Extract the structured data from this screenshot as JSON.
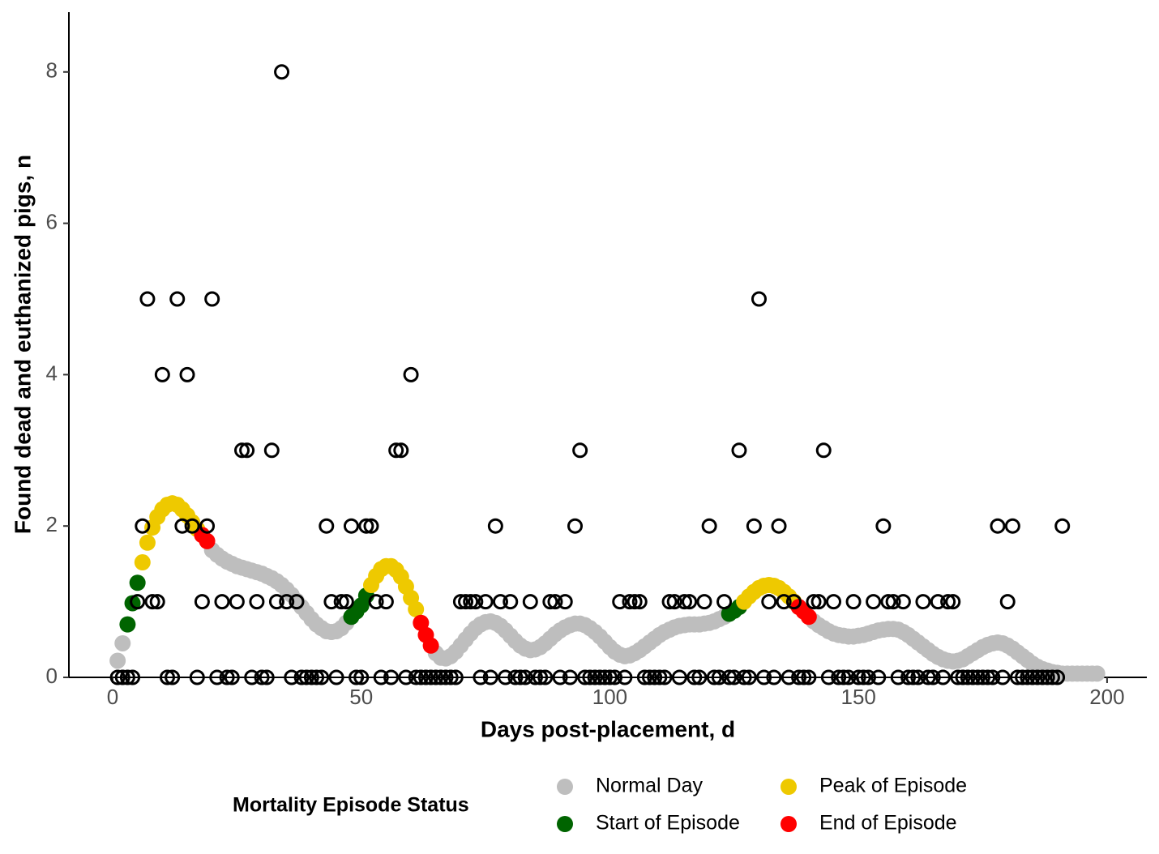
{
  "chart_data": {
    "type": "scatter",
    "x_label": "Days post-placement, d",
    "y_label": "Found dead and euthanized pigs, n",
    "legend_title": "Mortality Episode Status",
    "xlim": [
      -8.8,
      208
    ],
    "ylim": [
      0,
      8.79
    ],
    "xticks": [
      0,
      50,
      100,
      150,
      200
    ],
    "yticks": [
      0,
      2,
      4,
      6,
      8
    ],
    "grid": false,
    "legend_position": "bottom",
    "points": {
      "color": "#000000",
      "x": [
        1,
        2,
        3,
        4,
        5,
        6,
        7,
        8,
        9,
        10,
        11,
        12,
        13,
        14,
        15,
        16,
        17,
        18,
        19,
        20,
        21,
        22,
        23,
        24,
        25,
        26,
        27,
        28,
        29,
        30,
        31,
        32,
        33,
        34,
        35,
        36,
        37,
        38,
        39,
        40,
        41,
        42,
        43,
        44,
        45,
        46,
        47,
        48,
        49,
        50,
        51,
        52,
        53,
        54,
        55,
        56,
        57,
        58,
        59,
        60,
        61,
        62,
        63,
        64,
        65,
        66,
        67,
        68,
        69,
        70,
        71,
        72,
        73,
        74,
        75,
        76,
        77,
        78,
        79,
        80,
        81,
        82,
        83,
        84,
        85,
        86,
        87,
        88,
        89,
        90,
        91,
        92,
        93,
        94,
        95,
        96,
        97,
        98,
        99,
        100,
        101,
        102,
        103,
        104,
        105,
        106,
        107,
        108,
        109,
        110,
        111,
        112,
        113,
        114,
        115,
        116,
        117,
        118,
        119,
        120,
        121,
        122,
        123,
        124,
        125,
        126,
        127,
        128,
        129,
        130,
        131,
        132,
        133,
        134,
        135,
        136,
        137,
        138,
        139,
        140,
        141,
        142,
        143,
        144,
        145,
        146,
        147,
        148,
        149,
        150,
        151,
        152,
        153,
        154,
        155,
        156,
        157,
        158,
        159,
        160,
        161,
        162,
        163,
        164,
        165,
        166,
        167,
        168,
        169,
        170,
        171,
        172,
        173,
        174,
        175,
        176,
        177,
        178,
        179,
        180,
        181,
        182,
        183,
        184,
        185,
        186,
        187,
        188,
        189,
        190,
        191
      ],
      "values": [
        0,
        0,
        0,
        0,
        1,
        2,
        5,
        1,
        1,
        4,
        0,
        0,
        5,
        2,
        4,
        2,
        0,
        1,
        2,
        5,
        0,
        1,
        0,
        0,
        1,
        3,
        3,
        0,
        1,
        0,
        0,
        3,
        1,
        8,
        1,
        0,
        1,
        0,
        0,
        0,
        0,
        0,
        2,
        1,
        0,
        1,
        1,
        2,
        0,
        0,
        2,
        2,
        1,
        0,
        1,
        0,
        3,
        3,
        0,
        4,
        0,
        0,
        0,
        0,
        0,
        0,
        0,
        0,
        0,
        1,
        1,
        1,
        1,
        0,
        1,
        0,
        2,
        1,
        0,
        1,
        0,
        0,
        0,
        1,
        0,
        0,
        0,
        1,
        1,
        0,
        1,
        0,
        2,
        3,
        0,
        0,
        0,
        0,
        0,
        0,
        0,
        1,
        0,
        1,
        1,
        1,
        0,
        0,
        0,
        0,
        0,
        1,
        1,
        0,
        1,
        1,
        0,
        0,
        1,
        2,
        0,
        0,
        1,
        0,
        0,
        3,
        0,
        0,
        2,
        5,
        0,
        1,
        0,
        2,
        1,
        0,
        1,
        0,
        0,
        0,
        1,
        1,
        3,
        0,
        1,
        0,
        0,
        0,
        1,
        0,
        0,
        0,
        1,
        0,
        2,
        1,
        1,
        0,
        1,
        0,
        0,
        0,
        1,
        0,
        0,
        1,
        0,
        1,
        1,
        0,
        0,
        0,
        0,
        0,
        0,
        0,
        0,
        2,
        0,
        1,
        2,
        0,
        0,
        0,
        0,
        0,
        0,
        0,
        0,
        0,
        2
      ]
    },
    "series": [
      {
        "name": "Normal Day",
        "color": "#bebebe",
        "x": [
          1,
          2,
          20,
          21,
          22,
          23,
          24,
          25,
          26,
          27,
          28,
          29,
          30,
          31,
          32,
          33,
          34,
          35,
          36,
          37,
          38,
          39,
          40,
          41,
          42,
          43,
          44,
          45,
          46,
          47,
          65,
          66,
          67,
          68,
          69,
          70,
          71,
          72,
          73,
          74,
          75,
          76,
          77,
          78,
          79,
          80,
          81,
          82,
          83,
          84,
          85,
          86,
          87,
          88,
          89,
          90,
          91,
          92,
          93,
          94,
          95,
          96,
          97,
          98,
          99,
          100,
          101,
          102,
          103,
          104,
          105,
          106,
          107,
          108,
          109,
          110,
          111,
          112,
          113,
          114,
          115,
          116,
          117,
          118,
          119,
          120,
          121,
          122,
          123,
          141,
          142,
          143,
          144,
          145,
          146,
          147,
          148,
          149,
          150,
          151,
          152,
          153,
          154,
          155,
          156,
          157,
          158,
          159,
          160,
          161,
          162,
          163,
          164,
          165,
          166,
          167,
          168,
          169,
          170,
          171,
          172,
          173,
          174,
          175,
          176,
          177,
          178,
          179,
          180,
          181,
          182,
          183,
          184,
          185,
          186,
          187,
          188,
          189,
          190,
          191,
          192,
          193,
          194,
          195,
          196,
          197,
          198
        ],
        "values": [
          0.22,
          0.45,
          1.68,
          1.62,
          1.57,
          1.53,
          1.5,
          1.47,
          1.45,
          1.43,
          1.41,
          1.39,
          1.37,
          1.34,
          1.31,
          1.27,
          1.22,
          1.16,
          1.09,
          1.01,
          0.93,
          0.85,
          0.77,
          0.7,
          0.65,
          0.61,
          0.6,
          0.61,
          0.65,
          0.72,
          0.32,
          0.26,
          0.25,
          0.28,
          0.34,
          0.42,
          0.5,
          0.58,
          0.65,
          0.7,
          0.73,
          0.74,
          0.72,
          0.68,
          0.62,
          0.55,
          0.48,
          0.42,
          0.38,
          0.36,
          0.37,
          0.4,
          0.45,
          0.51,
          0.57,
          0.62,
          0.66,
          0.69,
          0.71,
          0.71,
          0.69,
          0.65,
          0.6,
          0.54,
          0.47,
          0.4,
          0.34,
          0.3,
          0.28,
          0.29,
          0.32,
          0.36,
          0.41,
          0.46,
          0.51,
          0.56,
          0.6,
          0.63,
          0.66,
          0.68,
          0.69,
          0.7,
          0.7,
          0.7,
          0.71,
          0.72,
          0.74,
          0.77,
          0.8,
          0.74,
          0.69,
          0.65,
          0.61,
          0.58,
          0.56,
          0.55,
          0.54,
          0.54,
          0.55,
          0.56,
          0.58,
          0.6,
          0.62,
          0.63,
          0.64,
          0.64,
          0.63,
          0.6,
          0.56,
          0.51,
          0.46,
          0.41,
          0.36,
          0.31,
          0.27,
          0.24,
          0.22,
          0.21,
          0.22,
          0.24,
          0.28,
          0.32,
          0.36,
          0.4,
          0.43,
          0.45,
          0.46,
          0.45,
          0.42,
          0.38,
          0.33,
          0.28,
          0.23,
          0.18,
          0.14,
          0.11,
          0.09,
          0.07,
          0.06,
          0.05,
          0.05,
          0.05,
          0.05,
          0.05,
          0.05,
          0.05,
          0.05
        ]
      },
      {
        "name": "Start of Episode",
        "color": "#006400",
        "x": [
          3,
          4,
          5,
          48,
          49,
          50,
          51,
          124,
          125,
          126
        ],
        "values": [
          0.7,
          0.98,
          1.25,
          0.8,
          0.87,
          0.95,
          1.08,
          0.84,
          0.88,
          0.93
        ]
      },
      {
        "name": "Peak of Episode",
        "color": "#eec900",
        "x": [
          6,
          7,
          8,
          9,
          10,
          11,
          12,
          13,
          14,
          15,
          16,
          17,
          52,
          53,
          54,
          55,
          56,
          57,
          58,
          59,
          60,
          61,
          127,
          128,
          129,
          130,
          131,
          132,
          133,
          134,
          135,
          136,
          137
        ],
        "values": [
          1.52,
          1.78,
          1.98,
          2.12,
          2.22,
          2.28,
          2.3,
          2.28,
          2.22,
          2.14,
          2.05,
          1.96,
          1.22,
          1.34,
          1.43,
          1.47,
          1.47,
          1.42,
          1.33,
          1.2,
          1.05,
          0.9,
          1.0,
          1.07,
          1.13,
          1.18,
          1.21,
          1.22,
          1.21,
          1.18,
          1.13,
          1.07,
          1.0
        ]
      },
      {
        "name": "End of Episode",
        "color": "#ff0000",
        "x": [
          18,
          19,
          62,
          63,
          64,
          138,
          139,
          140
        ],
        "values": [
          1.88,
          1.8,
          0.72,
          0.56,
          0.42,
          0.93,
          0.87,
          0.8
        ]
      }
    ]
  }
}
